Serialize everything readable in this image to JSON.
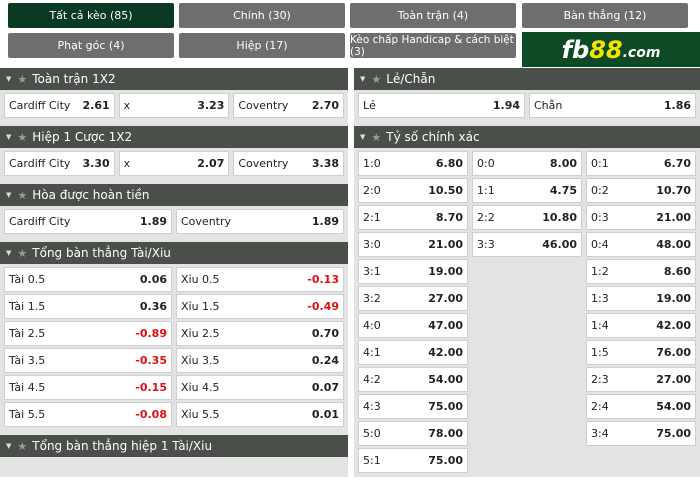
{
  "tabs": [
    {
      "label": "Tất cả kèo (85)",
      "active": true
    },
    {
      "label": "Chính (30)"
    },
    {
      "label": "Toàn trận (4)"
    },
    {
      "label": "Bàn thẳng (12)"
    },
    {
      "label": "Phạt góc (4)"
    },
    {
      "label": "Hiệp (17)"
    },
    {
      "label": "Kèo chấp Handicap & cách biệt (3)"
    }
  ],
  "logo": {
    "text": "fb88.com",
    "colors": {
      "bg": "#0d4a25",
      "accent": "#f5e400"
    }
  },
  "left": [
    {
      "title": "Toàn trận 1X2",
      "rows": [
        [
          [
            "Cardiff City",
            "2.61"
          ],
          [
            "x",
            "3.23"
          ],
          [
            "Coventry",
            "2.70"
          ]
        ]
      ]
    },
    {
      "title": "Hiệp 1 Cược 1X2",
      "rows": [
        [
          [
            "Cardiff City",
            "3.30"
          ],
          [
            "x",
            "2.07"
          ],
          [
            "Coventry",
            "3.38"
          ]
        ]
      ]
    },
    {
      "title": "Hòa được hoàn tiền",
      "rows": [
        [
          [
            "Cardiff City",
            "1.89"
          ],
          [
            "Coventry",
            "1.89"
          ]
        ]
      ]
    },
    {
      "title": "Tổng bàn thẳng Tài/Xiu",
      "rows": [
        [
          [
            "Tài 0.5",
            "0.06"
          ],
          [
            "Xỉu 0.5",
            "-0.13"
          ]
        ],
        [
          [
            "Tài 1.5",
            "0.36"
          ],
          [
            "Xỉu 1.5",
            "-0.49"
          ]
        ],
        [
          [
            "Tài 2.5",
            "-0.89"
          ],
          [
            "Xỉu 2.5",
            "0.70"
          ]
        ],
        [
          [
            "Tài 3.5",
            "-0.35"
          ],
          [
            "Xỉu 3.5",
            "0.24"
          ]
        ],
        [
          [
            "Tài 4.5",
            "-0.15"
          ],
          [
            "Xỉu 4.5",
            "0.07"
          ]
        ],
        [
          [
            "Tài 5.5",
            "-0.08"
          ],
          [
            "Xỉu 5.5",
            "0.01"
          ]
        ]
      ]
    },
    {
      "title": "Tổng bàn thẳng hiệp 1 Tài/Xiu",
      "rows": []
    }
  ],
  "right": [
    {
      "title": "Lẻ/Chẵn",
      "rows": [
        [
          [
            "Lẻ",
            "1.94"
          ],
          [
            "Chẵn",
            "1.86"
          ]
        ]
      ]
    },
    {
      "title": "Tỷ số chính xác",
      "rows": [
        [
          [
            "1:0",
            "6.80"
          ],
          [
            "0:0",
            "8.00"
          ],
          [
            "0:1",
            "6.70"
          ]
        ],
        [
          [
            "2:0",
            "10.50"
          ],
          [
            "1:1",
            "4.75"
          ],
          [
            "0:2",
            "10.70"
          ]
        ],
        [
          [
            "2:1",
            "8.70"
          ],
          [
            "2:2",
            "10.80"
          ],
          [
            "0:3",
            "21.00"
          ]
        ],
        [
          [
            "3:0",
            "21.00"
          ],
          [
            "3:3",
            "46.00"
          ],
          [
            "0:4",
            "48.00"
          ]
        ],
        [
          [
            "3:1",
            "19.00"
          ],
          null,
          [
            "1:2",
            "8.60"
          ]
        ],
        [
          [
            "3:2",
            "27.00"
          ],
          null,
          [
            "1:3",
            "19.00"
          ]
        ],
        [
          [
            "4:0",
            "47.00"
          ],
          null,
          [
            "1:4",
            "42.00"
          ]
        ],
        [
          [
            "4:1",
            "42.00"
          ],
          null,
          [
            "1:5",
            "76.00"
          ]
        ],
        [
          [
            "4:2",
            "54.00"
          ],
          null,
          [
            "2:3",
            "27.00"
          ]
        ],
        [
          [
            "4:3",
            "75.00"
          ],
          null,
          [
            "2:4",
            "54.00"
          ]
        ],
        [
          [
            "5:0",
            "78.00"
          ],
          null,
          [
            "3:4",
            "75.00"
          ]
        ],
        [
          [
            "5:1",
            "75.00"
          ],
          null,
          null
        ]
      ]
    }
  ]
}
